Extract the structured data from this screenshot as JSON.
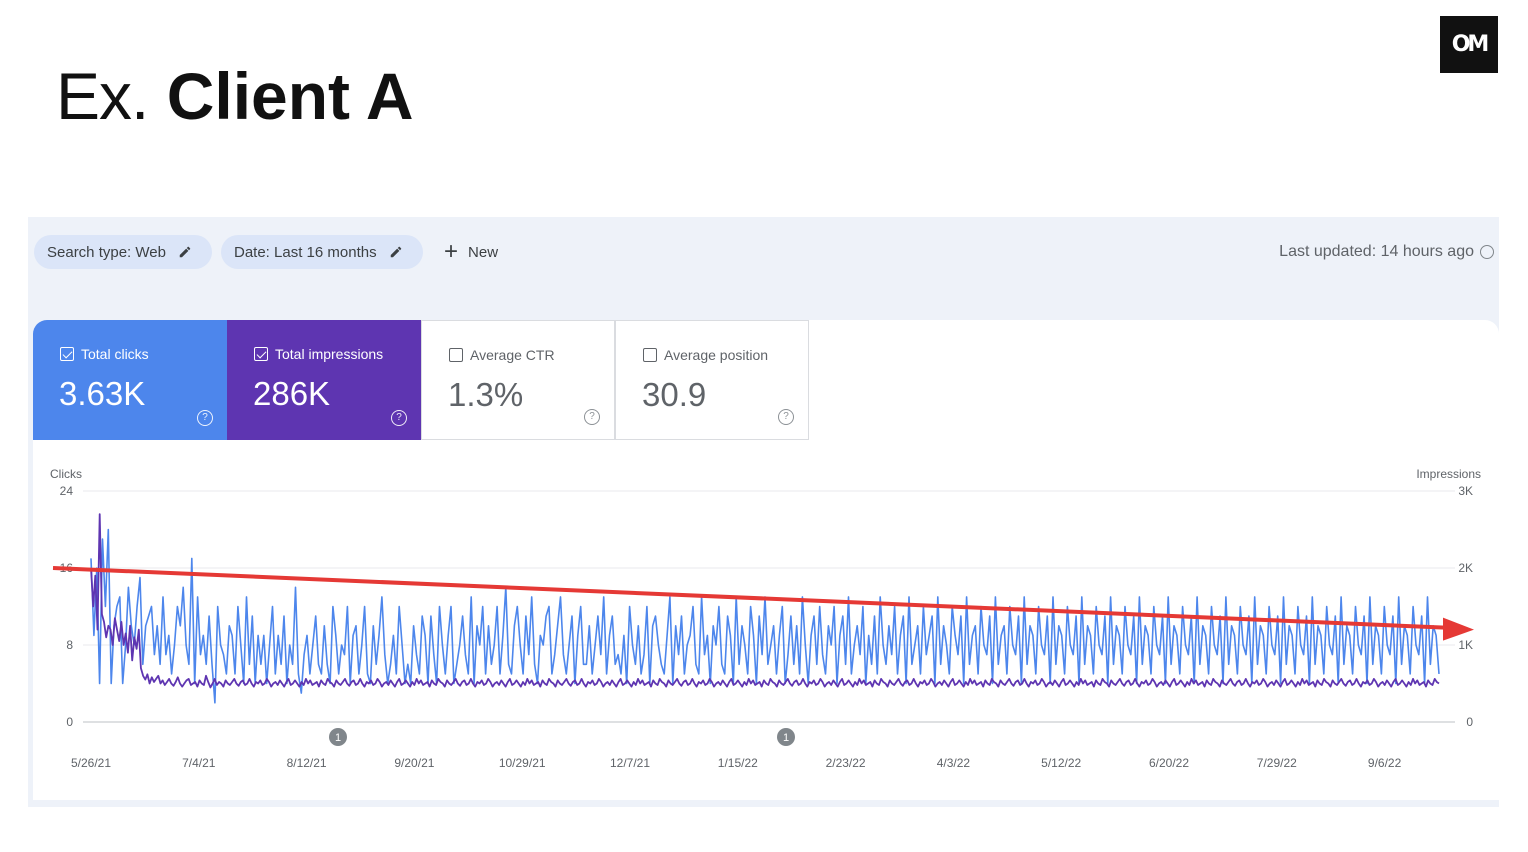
{
  "slide": {
    "title_prefix": "Ex.",
    "title_main": "Client A",
    "logo_text": "OM"
  },
  "filters": {
    "search_type": "Search type: Web",
    "date": "Date: Last 16 months",
    "new_label": "New",
    "last_updated": "Last updated: 14 hours ago"
  },
  "metrics": {
    "total_clicks": {
      "label": "Total clicks",
      "value": "3.63K",
      "checked": true,
      "color": "#4d86ec"
    },
    "total_impressions": {
      "label": "Total impressions",
      "value": "286K",
      "checked": true,
      "color": "#5e35b1"
    },
    "average_ctr": {
      "label": "Average CTR",
      "value": "1.3%",
      "checked": false
    },
    "average_position": {
      "label": "Average position",
      "value": "30.9",
      "checked": false
    }
  },
  "chart_data": {
    "type": "line",
    "left_axis_title": "Clicks",
    "right_axis_title": "Impressions",
    "left_ticks": [
      "24",
      "16",
      "8",
      "0"
    ],
    "right_ticks": [
      "3K",
      "2K",
      "1K",
      "0"
    ],
    "ylim_left": [
      0,
      24
    ],
    "ylim_right": [
      0,
      3000
    ],
    "x_ticks": [
      "5/26/21",
      "7/4/21",
      "8/12/21",
      "9/20/21",
      "10/29/21",
      "12/7/21",
      "1/15/22",
      "2/23/22",
      "4/3/22",
      "5/12/22",
      "6/20/22",
      "7/29/22",
      "9/6/22"
    ],
    "annotations": [
      "1",
      "1"
    ],
    "series": [
      {
        "axis": "left",
        "color": "#4d86ec",
        "values": [
          17,
          9,
          16,
          4,
          19,
          12,
          20,
          4,
          10,
          12,
          13,
          4,
          8,
          14,
          10,
          8,
          12,
          15,
          6,
          10,
          11,
          12,
          7,
          10,
          6,
          13,
          7,
          9,
          5,
          8,
          12,
          10,
          14,
          8,
          6,
          17,
          4,
          13,
          7,
          9,
          6,
          11,
          6,
          2,
          12,
          8,
          7,
          5,
          10,
          9,
          5,
          12,
          8,
          4,
          13,
          6,
          11,
          4,
          9,
          6,
          9,
          4,
          8,
          12,
          5,
          9,
          6,
          11,
          4,
          8,
          6,
          14,
          5,
          3,
          7,
          9,
          5,
          8,
          11,
          6,
          5,
          10,
          6,
          4,
          12,
          9,
          5,
          8,
          7,
          12,
          4,
          9,
          10,
          5,
          8,
          12,
          5,
          4,
          10,
          6,
          9,
          13,
          7,
          4,
          6,
          9,
          5,
          12,
          8,
          4,
          6,
          4,
          10,
          7,
          5,
          11,
          9,
          4,
          11,
          7,
          4,
          12,
          8,
          5,
          9,
          12,
          4,
          6,
          8,
          11,
          7,
          5,
          13,
          4,
          10,
          8,
          12,
          5,
          10,
          6,
          8,
          12,
          5,
          9,
          14,
          6,
          5,
          10,
          12,
          8,
          5,
          11,
          7,
          13,
          6,
          4,
          9,
          8,
          11,
          12,
          5,
          7,
          10,
          13,
          7,
          5,
          8,
          11,
          4,
          9,
          12,
          6,
          6,
          10,
          5,
          8,
          11,
          7,
          13,
          5,
          9,
          11,
          6,
          7,
          5,
          9,
          4,
          12,
          8,
          6,
          10,
          5,
          7,
          12,
          4,
          10,
          11,
          8,
          6,
          5,
          9,
          13,
          4,
          10,
          7,
          11,
          5,
          8,
          9,
          12,
          6,
          5,
          13,
          7,
          9,
          4,
          10,
          8,
          12,
          6,
          5,
          11,
          9,
          4,
          13,
          6,
          10,
          8,
          5,
          12,
          9,
          4,
          11,
          7,
          13,
          6,
          8,
          10,
          5,
          9,
          12,
          4,
          7,
          11,
          6,
          10,
          5,
          13,
          8,
          4,
          9,
          11,
          6,
          12,
          7,
          5,
          10,
          8,
          12,
          4,
          9,
          11,
          6,
          13,
          5,
          8,
          10,
          7,
          12,
          4,
          9,
          6,
          11,
          5,
          13,
          8,
          6,
          10,
          7,
          12,
          5,
          9,
          11,
          4,
          13,
          6,
          8,
          10,
          5,
          12,
          7,
          9,
          11,
          4,
          13,
          6,
          10,
          8,
          5,
          12,
          9,
          7,
          11,
          4,
          13,
          6,
          9,
          10,
          5,
          12,
          8,
          7,
          11,
          4,
          13,
          6,
          9,
          10,
          5,
          12,
          8,
          7,
          11,
          4,
          13,
          6,
          10,
          9,
          5,
          12,
          8,
          7,
          11,
          4,
          13,
          6,
          10,
          9,
          5,
          12,
          8,
          7,
          11,
          4,
          13,
          6,
          10,
          9,
          5,
          12,
          8,
          7,
          11,
          4,
          13,
          6,
          10,
          9,
          5,
          12,
          8,
          7,
          11,
          4,
          13,
          6,
          10,
          9,
          5,
          12,
          8,
          7,
          11,
          4,
          13,
          6,
          10,
          9,
          5,
          12,
          8,
          7,
          11,
          4,
          13,
          6,
          10,
          9,
          5,
          12,
          8,
          7,
          11,
          4,
          13,
          6,
          10,
          9,
          5,
          12,
          8,
          7,
          11,
          4,
          13,
          6,
          10,
          9,
          5,
          12,
          8,
          7,
          11,
          4,
          13,
          6,
          10,
          9,
          5,
          12,
          8,
          7,
          11,
          4,
          13,
          6,
          10,
          9,
          5,
          12,
          8,
          7,
          11,
          4,
          13,
          6,
          10,
          9,
          5,
          12,
          8,
          7,
          11,
          4,
          13,
          6,
          10,
          9,
          5,
          12,
          8,
          7,
          11,
          4,
          13,
          6,
          10,
          9,
          5,
          12,
          8,
          7,
          11,
          4,
          13,
          6,
          10,
          9,
          5
        ]
      },
      {
        "axis": "right",
        "color": "#5e35b1",
        "values": [
          2000,
          1500,
          1900,
          1200,
          2700,
          1400,
          1300,
          1100,
          1250,
          1200,
          1000,
          1350,
          1200,
          1050,
          1300,
          1000,
          1150,
          900,
          1250,
          800,
          1100,
          950,
          1200,
          700,
          600,
          550,
          620,
          500,
          580,
          520,
          560,
          600,
          500,
          540,
          480,
          520,
          560,
          500,
          470,
          520,
          580,
          500,
          460,
          500,
          540,
          560,
          480,
          500,
          520,
          460,
          540,
          500,
          480,
          600,
          520,
          450,
          500,
          560,
          480,
          520,
          500,
          460,
          540,
          500,
          480,
          520,
          560,
          500,
          470,
          520,
          540,
          480,
          500,
          560,
          500,
          460,
          520,
          500,
          540,
          480,
          500,
          560,
          520,
          460,
          500,
          520,
          480,
          540,
          500,
          460,
          520,
          560,
          480,
          500,
          540,
          500,
          460,
          520,
          480,
          560,
          500,
          540,
          480,
          500,
          520,
          460,
          540,
          500,
          480,
          560,
          520,
          500,
          460,
          540,
          500,
          480,
          520,
          560,
          500,
          470,
          520,
          540,
          480,
          500,
          560,
          500,
          460,
          520,
          500,
          540,
          480,
          500,
          560,
          520,
          460,
          500,
          520,
          480,
          540,
          500,
          460,
          520,
          560,
          480,
          500,
          540,
          500,
          460,
          520,
          480,
          560,
          500,
          540,
          480,
          500,
          520,
          460,
          540,
          500,
          480,
          560,
          520,
          500,
          460,
          540,
          500,
          480,
          520,
          560,
          500,
          470,
          520,
          540,
          480,
          500,
          560,
          500,
          460,
          520,
          500,
          540,
          480,
          500,
          560,
          520,
          460,
          500,
          520,
          480,
          540,
          500,
          460,
          520,
          560,
          480,
          500,
          540,
          500,
          460,
          520,
          480,
          560,
          500,
          540,
          480,
          500,
          520,
          460,
          540,
          500,
          480,
          560,
          520,
          500,
          460,
          540,
          500,
          480,
          520,
          560,
          500,
          470,
          520,
          540,
          480,
          500,
          560,
          500,
          460,
          520,
          500,
          540,
          480,
          500,
          560,
          520,
          460,
          500,
          520,
          480,
          540,
          500,
          460,
          520,
          560,
          480,
          500,
          540,
          500,
          460,
          520,
          480,
          560,
          500,
          540,
          480,
          500,
          520,
          460,
          540,
          500,
          480,
          560,
          520,
          500,
          460,
          540,
          500,
          480,
          520,
          560,
          500,
          470,
          520,
          540,
          480,
          500,
          560,
          500,
          460,
          520,
          500,
          540,
          480,
          500,
          560,
          520,
          460,
          500,
          520,
          480,
          540,
          500,
          460,
          520,
          560,
          480,
          500,
          540,
          500,
          460,
          520,
          480,
          560,
          500,
          540,
          480,
          500,
          520,
          460,
          540,
          500,
          480,
          560,
          520,
          500,
          460,
          540,
          500,
          480,
          520,
          560,
          500,
          470,
          520,
          540,
          480,
          500,
          560,
          500,
          460,
          520,
          500,
          540,
          480,
          500,
          560,
          520,
          460,
          500,
          520,
          480,
          540,
          500,
          460,
          520,
          560,
          480,
          500,
          540,
          500,
          460,
          520,
          480,
          560,
          500,
          540,
          480,
          500,
          520,
          460,
          540,
          500,
          480,
          560,
          520,
          500,
          460,
          540,
          500,
          480,
          520,
          560,
          500,
          470,
          520,
          540,
          480,
          500,
          560,
          500,
          460,
          520,
          500,
          540,
          480,
          500,
          560,
          520,
          460,
          500,
          520,
          480,
          540,
          500,
          460,
          520,
          560,
          480,
          500,
          540,
          500,
          460,
          520,
          480,
          560,
          500,
          540,
          480,
          500,
          520,
          460,
          540,
          500,
          480,
          560,
          520,
          500,
          460,
          540,
          500,
          480,
          520,
          560,
          500,
          470,
          520,
          540,
          480,
          500,
          560,
          500,
          460,
          520,
          500,
          540,
          480,
          500,
          560,
          520,
          460,
          500,
          520,
          480,
          540,
          500,
          460,
          520,
          560,
          480,
          500,
          540,
          500,
          460,
          520,
          480,
          560,
          500,
          540,
          480,
          500,
          520,
          460,
          540,
          500,
          480,
          560,
          520,
          500,
          460,
          540,
          500,
          480,
          520,
          560,
          500,
          470,
          520,
          540,
          480,
          500,
          560,
          500,
          460,
          520,
          500,
          540,
          480,
          500,
          560,
          520,
          460,
          500,
          520,
          480,
          540,
          500,
          460,
          520,
          560,
          480,
          500,
          540,
          500,
          460,
          520,
          480,
          560,
          500,
          540,
          480,
          500,
          520,
          460,
          540,
          500,
          480,
          560,
          520,
          500,
          460,
          540,
          500,
          480,
          520,
          560,
          500,
          470,
          520,
          540,
          480,
          500,
          560,
          500,
          460,
          520,
          500,
          540,
          480,
          500,
          560,
          520,
          460,
          500,
          520,
          480,
          540,
          500,
          460,
          520,
          560,
          480,
          500,
          540,
          500,
          460,
          520,
          480,
          560,
          500,
          540,
          480,
          500,
          520,
          460,
          540,
          500,
          480,
          560,
          520,
          500,
          460,
          540,
          500,
          480,
          520,
          560,
          500,
          470,
          520,
          540,
          480,
          500,
          560,
          500,
          460,
          520,
          500,
          540,
          480,
          500,
          560,
          520,
          460,
          500,
          520,
          480,
          540,
          500,
          460,
          520,
          560,
          480,
          500,
          540,
          500,
          460,
          520,
          480,
          560,
          500,
          540,
          480,
          500,
          520,
          460,
          540,
          500,
          480,
          560,
          520,
          500
        ]
      }
    ],
    "trend_line": {
      "color": "#e53935",
      "from": 16,
      "to": 9.8,
      "axis": "left"
    }
  }
}
